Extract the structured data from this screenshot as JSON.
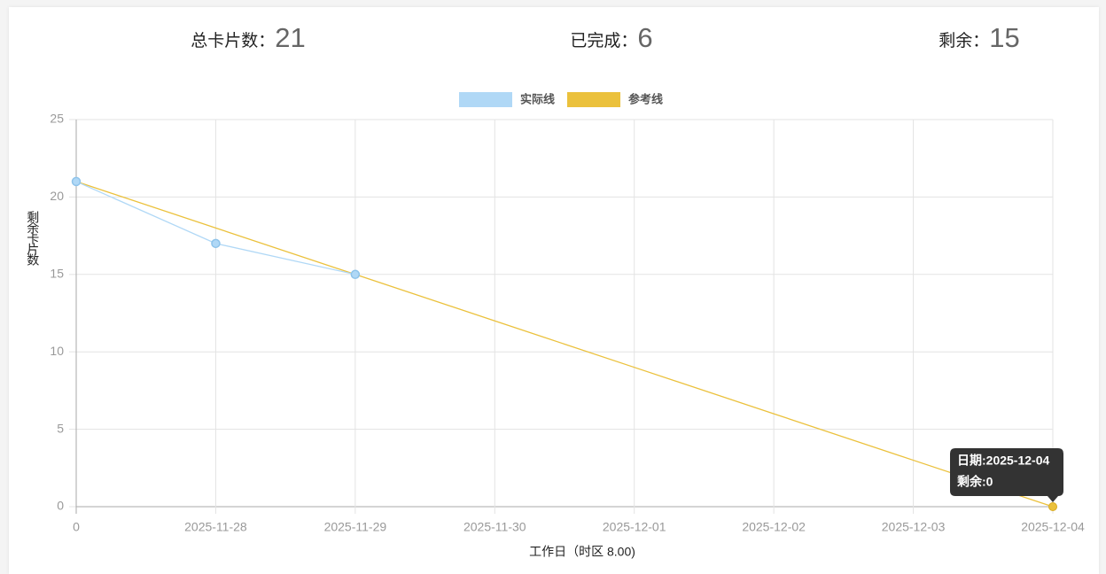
{
  "stats": [
    {
      "label": "总卡片数：",
      "value": 21
    },
    {
      "label": "已完成：",
      "value": 6
    },
    {
      "label": "剩余：",
      "value": 15
    }
  ],
  "chart_data": {
    "type": "line",
    "categories": [
      "0",
      "2025-11-28",
      "2025-11-29",
      "2025-11-30",
      "2025-12-01",
      "2025-12-02",
      "2025-12-03",
      "2025-12-04"
    ],
    "series": [
      {
        "name": "实际线",
        "color": "#b0d8f6",
        "values": [
          21,
          17,
          15,
          null,
          null,
          null,
          null,
          null
        ]
      },
      {
        "name": "参考线",
        "color": "#ebc13c",
        "values": [
          21,
          18,
          15,
          12,
          9,
          6,
          3,
          0
        ]
      }
    ],
    "ylim": [
      0,
      25
    ],
    "yticks": [
      0,
      5,
      10,
      15,
      20,
      25
    ],
    "grid": true,
    "legend": "top",
    "xlabel": "工作日（时区 8.00)",
    "ylabel": "剩余卡片数",
    "tooltip": {
      "lines": [
        "日期:2025-12-04",
        "剩余:0"
      ]
    }
  }
}
